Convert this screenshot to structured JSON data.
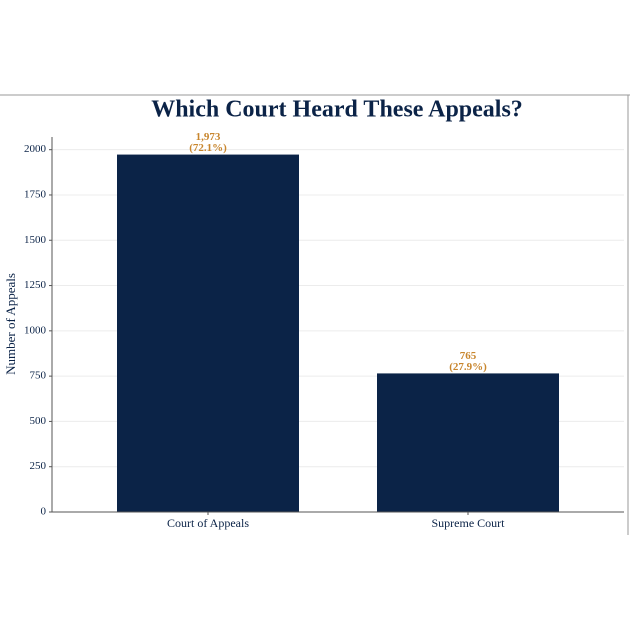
{
  "chart_data": {
    "type": "bar",
    "title": "Which Court Heard These Appeals?",
    "y_label": "Number of Appeals",
    "categories": [
      "Court of Appeals",
      "Supreme Court"
    ],
    "values": [
      1973,
      765
    ],
    "value_labels": [
      [
        "1,973",
        "(72.1%)"
      ],
      [
        "765",
        "(27.9%)"
      ]
    ],
    "color": "#0b2347",
    "ylim": [
      0,
      2070
    ],
    "yticks": [
      0,
      250,
      500,
      750,
      1000,
      1250,
      1500,
      1750,
      2000
    ],
    "grid": true
  }
}
